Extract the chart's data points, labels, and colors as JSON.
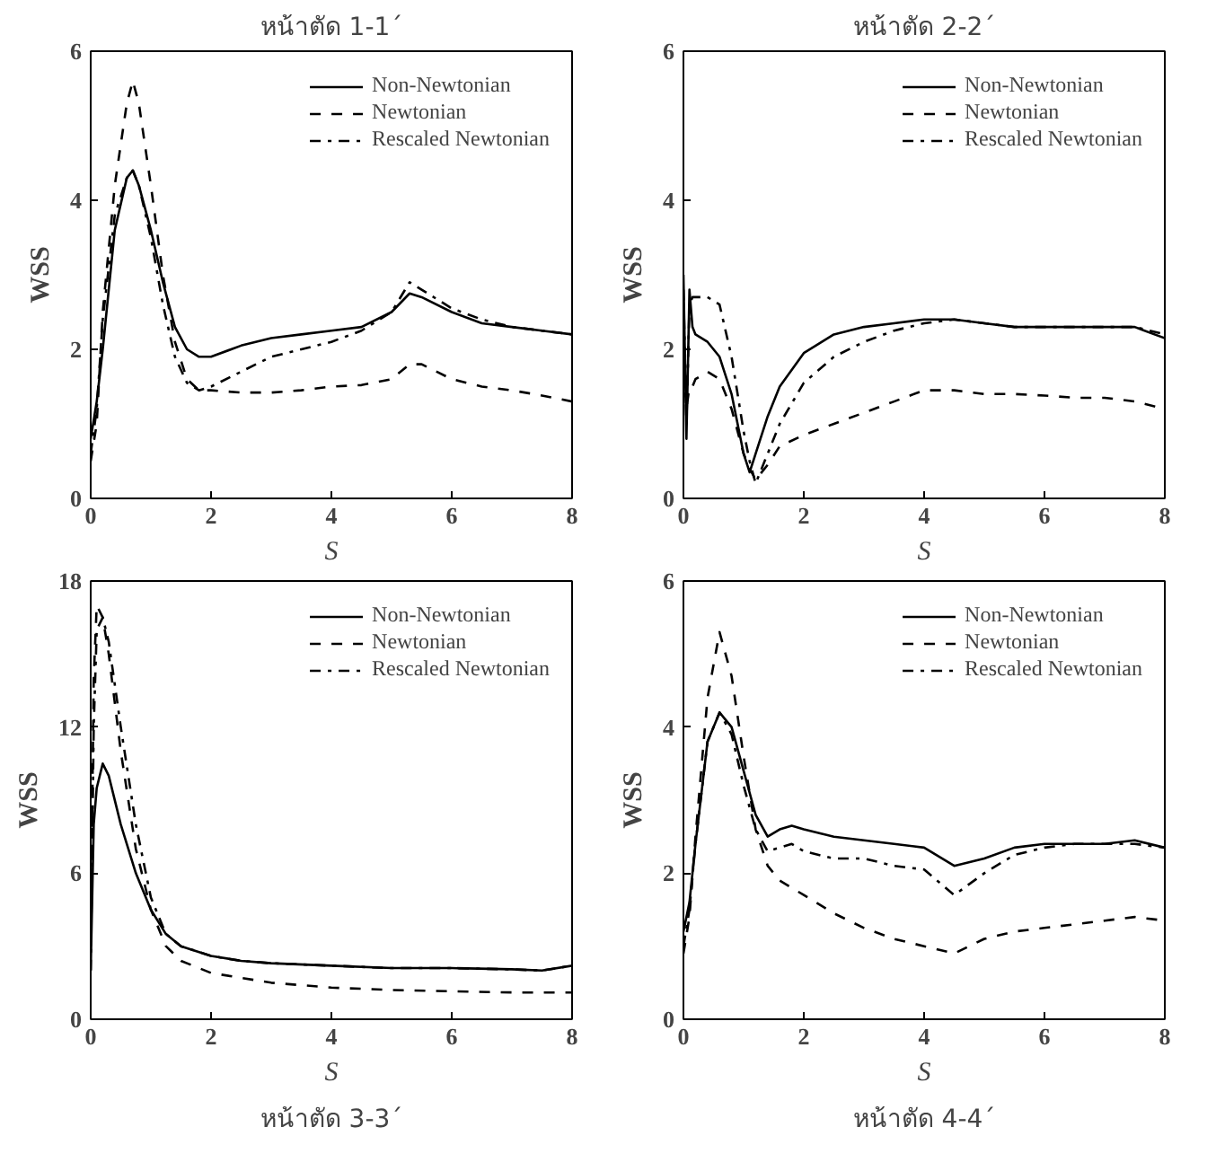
{
  "chart_data": [
    {
      "type": "line",
      "title": "หน้าตัด 1-1´",
      "xlabel": "S",
      "ylabel": "WSS",
      "xlim": [
        0,
        8
      ],
      "ylim": [
        0,
        6
      ],
      "xticks": [
        0,
        2,
        4,
        6,
        8
      ],
      "yticks": [
        0,
        2,
        4,
        6
      ],
      "grid": false,
      "legend": "top right",
      "x": [
        0,
        0.1,
        0.2,
        0.4,
        0.6,
        0.7,
        0.8,
        1.0,
        1.2,
        1.4,
        1.6,
        1.8,
        2.0,
        2.5,
        3,
        3.5,
        4,
        4.5,
        5,
        5.3,
        5.5,
        6,
        6.5,
        7,
        7.5,
        8
      ],
      "series": [
        {
          "name": "Non-Newtonian",
          "color": "#000000",
          "line_style": "solid",
          "values": [
            0.8,
            1.3,
            2.0,
            3.6,
            4.3,
            4.4,
            4.2,
            3.6,
            2.9,
            2.3,
            2.0,
            1.9,
            1.9,
            2.05,
            2.15,
            2.2,
            2.25,
            2.3,
            2.5,
            2.75,
            2.7,
            2.5,
            2.35,
            2.3,
            2.25,
            2.2
          ]
        },
        {
          "name": "Newtonian",
          "color": "#000000",
          "line_style": "dashed",
          "values": [
            0.5,
            1.0,
            2.5,
            4.2,
            5.3,
            5.6,
            5.3,
            4.2,
            3.0,
            2.1,
            1.6,
            1.45,
            1.45,
            1.42,
            1.42,
            1.45,
            1.5,
            1.52,
            1.6,
            1.8,
            1.8,
            1.6,
            1.5,
            1.45,
            1.38,
            1.3
          ]
        },
        {
          "name": "Rescaled Newtonian",
          "color": "#000000",
          "line_style": "dashdot",
          "values": [
            0.6,
            1.2,
            2.4,
            3.8,
            4.3,
            4.4,
            4.2,
            3.5,
            2.6,
            1.9,
            1.55,
            1.45,
            1.5,
            1.7,
            1.9,
            2.0,
            2.1,
            2.25,
            2.5,
            2.9,
            2.8,
            2.55,
            2.4,
            2.3,
            2.25,
            2.2
          ]
        }
      ]
    },
    {
      "type": "line",
      "title": "หน้าตัด 2-2´",
      "xlabel": "S",
      "ylabel": "WSS",
      "xlim": [
        0,
        8
      ],
      "ylim": [
        0,
        6
      ],
      "xticks": [
        0,
        2,
        4,
        6,
        8
      ],
      "yticks": [
        0,
        2,
        4,
        6
      ],
      "grid": false,
      "legend": "top right",
      "x": [
        0,
        0.05,
        0.1,
        0.15,
        0.2,
        0.4,
        0.6,
        0.8,
        1.0,
        1.1,
        1.2,
        1.4,
        1.6,
        2.0,
        2.5,
        3,
        3.5,
        4,
        4.5,
        5,
        5.5,
        6,
        6.5,
        7,
        7.5,
        8
      ],
      "series": [
        {
          "name": "Non-Newtonian",
          "color": "#000000",
          "line_style": "solid",
          "values": [
            3.0,
            0.8,
            2.8,
            2.3,
            2.2,
            2.1,
            1.9,
            1.4,
            0.6,
            0.35,
            0.6,
            1.1,
            1.5,
            1.95,
            2.2,
            2.3,
            2.35,
            2.4,
            2.4,
            2.35,
            2.3,
            2.3,
            2.3,
            2.3,
            2.3,
            2.15
          ]
        },
        {
          "name": "Newtonian",
          "color": "#000000",
          "line_style": "dashed",
          "values": [
            2.0,
            1.2,
            1.5,
            1.5,
            1.6,
            1.7,
            1.6,
            1.2,
            0.6,
            0.4,
            0.25,
            0.45,
            0.7,
            0.85,
            1.0,
            1.15,
            1.3,
            1.45,
            1.45,
            1.4,
            1.4,
            1.38,
            1.35,
            1.35,
            1.3,
            1.2
          ]
        },
        {
          "name": "Rescaled Newtonian",
          "color": "#000000",
          "line_style": "dashdot",
          "values": [
            2.8,
            1.0,
            2.6,
            2.7,
            2.7,
            2.7,
            2.6,
            1.9,
            0.9,
            0.5,
            0.2,
            0.6,
            1.0,
            1.55,
            1.9,
            2.1,
            2.25,
            2.35,
            2.4,
            2.35,
            2.3,
            2.3,
            2.3,
            2.3,
            2.3,
            2.2
          ]
        }
      ]
    },
    {
      "type": "line",
      "title": "หน้าตัด 3-3´",
      "xlabel": "S",
      "ylabel": "WSS",
      "xlim": [
        0,
        8
      ],
      "ylim": [
        0,
        18
      ],
      "xticks": [
        0,
        2,
        4,
        6,
        8
      ],
      "yticks": [
        0,
        6,
        12,
        18
      ],
      "grid": false,
      "legend": "top right",
      "x": [
        0,
        0.05,
        0.1,
        0.2,
        0.3,
        0.5,
        0.75,
        1,
        1.25,
        1.5,
        2,
        2.5,
        3,
        4,
        5,
        6,
        7,
        7.5,
        8
      ],
      "series": [
        {
          "name": "Non-Newtonian",
          "color": "#000000",
          "line_style": "solid",
          "values": [
            2,
            8,
            9.5,
            10.5,
            10,
            8,
            6,
            4.5,
            3.5,
            3,
            2.6,
            2.4,
            2.3,
            2.2,
            2.1,
            2.1,
            2.05,
            2.0,
            2.2
          ]
        },
        {
          "name": "Newtonian",
          "color": "#000000",
          "line_style": "dashed",
          "values": [
            3,
            14,
            17,
            16.5,
            15,
            11,
            7,
            4.5,
            3,
            2.4,
            1.9,
            1.7,
            1.5,
            1.3,
            1.2,
            1.15,
            1.1,
            1.1,
            1.1
          ]
        },
        {
          "name": "Rescaled Newtonian",
          "color": "#000000",
          "line_style": "dashdot",
          "values": [
            2,
            12,
            16,
            16.5,
            15.5,
            12,
            8,
            5,
            3.5,
            3.0,
            2.6,
            2.4,
            2.3,
            2.2,
            2.1,
            2.1,
            2.05,
            2.0,
            2.2
          ]
        }
      ]
    },
    {
      "type": "line",
      "title": "หน้าตัด 4-4´",
      "xlabel": "S",
      "ylabel": "WSS",
      "xlim": [
        0,
        8
      ],
      "ylim": [
        0,
        6
      ],
      "xticks": [
        0,
        2,
        4,
        6,
        8
      ],
      "yticks": [
        0,
        2,
        4,
        6
      ],
      "grid": false,
      "legend": "top right",
      "x": [
        0,
        0.1,
        0.2,
        0.4,
        0.6,
        0.8,
        1.0,
        1.2,
        1.4,
        1.6,
        1.8,
        2.0,
        2.5,
        3,
        3.5,
        4,
        4.5,
        5,
        5.5,
        6,
        6.5,
        7,
        7.5,
        8
      ],
      "series": [
        {
          "name": "Non-Newtonian",
          "color": "#000000",
          "line_style": "solid",
          "values": [
            1.2,
            1.6,
            2.4,
            3.8,
            4.2,
            4.0,
            3.4,
            2.8,
            2.5,
            2.6,
            2.65,
            2.6,
            2.5,
            2.45,
            2.4,
            2.35,
            2.1,
            2.2,
            2.35,
            2.4,
            2.4,
            2.4,
            2.45,
            2.35
          ]
        },
        {
          "name": "Newtonian",
          "color": "#000000",
          "line_style": "dashed",
          "values": [
            0.9,
            1.4,
            2.5,
            4.4,
            5.3,
            4.7,
            3.6,
            2.6,
            2.1,
            1.9,
            1.8,
            1.7,
            1.45,
            1.25,
            1.1,
            1.0,
            0.9,
            1.1,
            1.2,
            1.25,
            1.3,
            1.35,
            1.4,
            1.35
          ]
        },
        {
          "name": "Rescaled Newtonian",
          "color": "#000000",
          "line_style": "dashdot",
          "values": [
            1.0,
            1.5,
            2.4,
            3.8,
            4.2,
            3.9,
            3.2,
            2.6,
            2.3,
            2.35,
            2.4,
            2.3,
            2.2,
            2.2,
            2.1,
            2.05,
            1.7,
            2.0,
            2.25,
            2.35,
            2.4,
            2.4,
            2.4,
            2.35
          ]
        }
      ]
    }
  ]
}
